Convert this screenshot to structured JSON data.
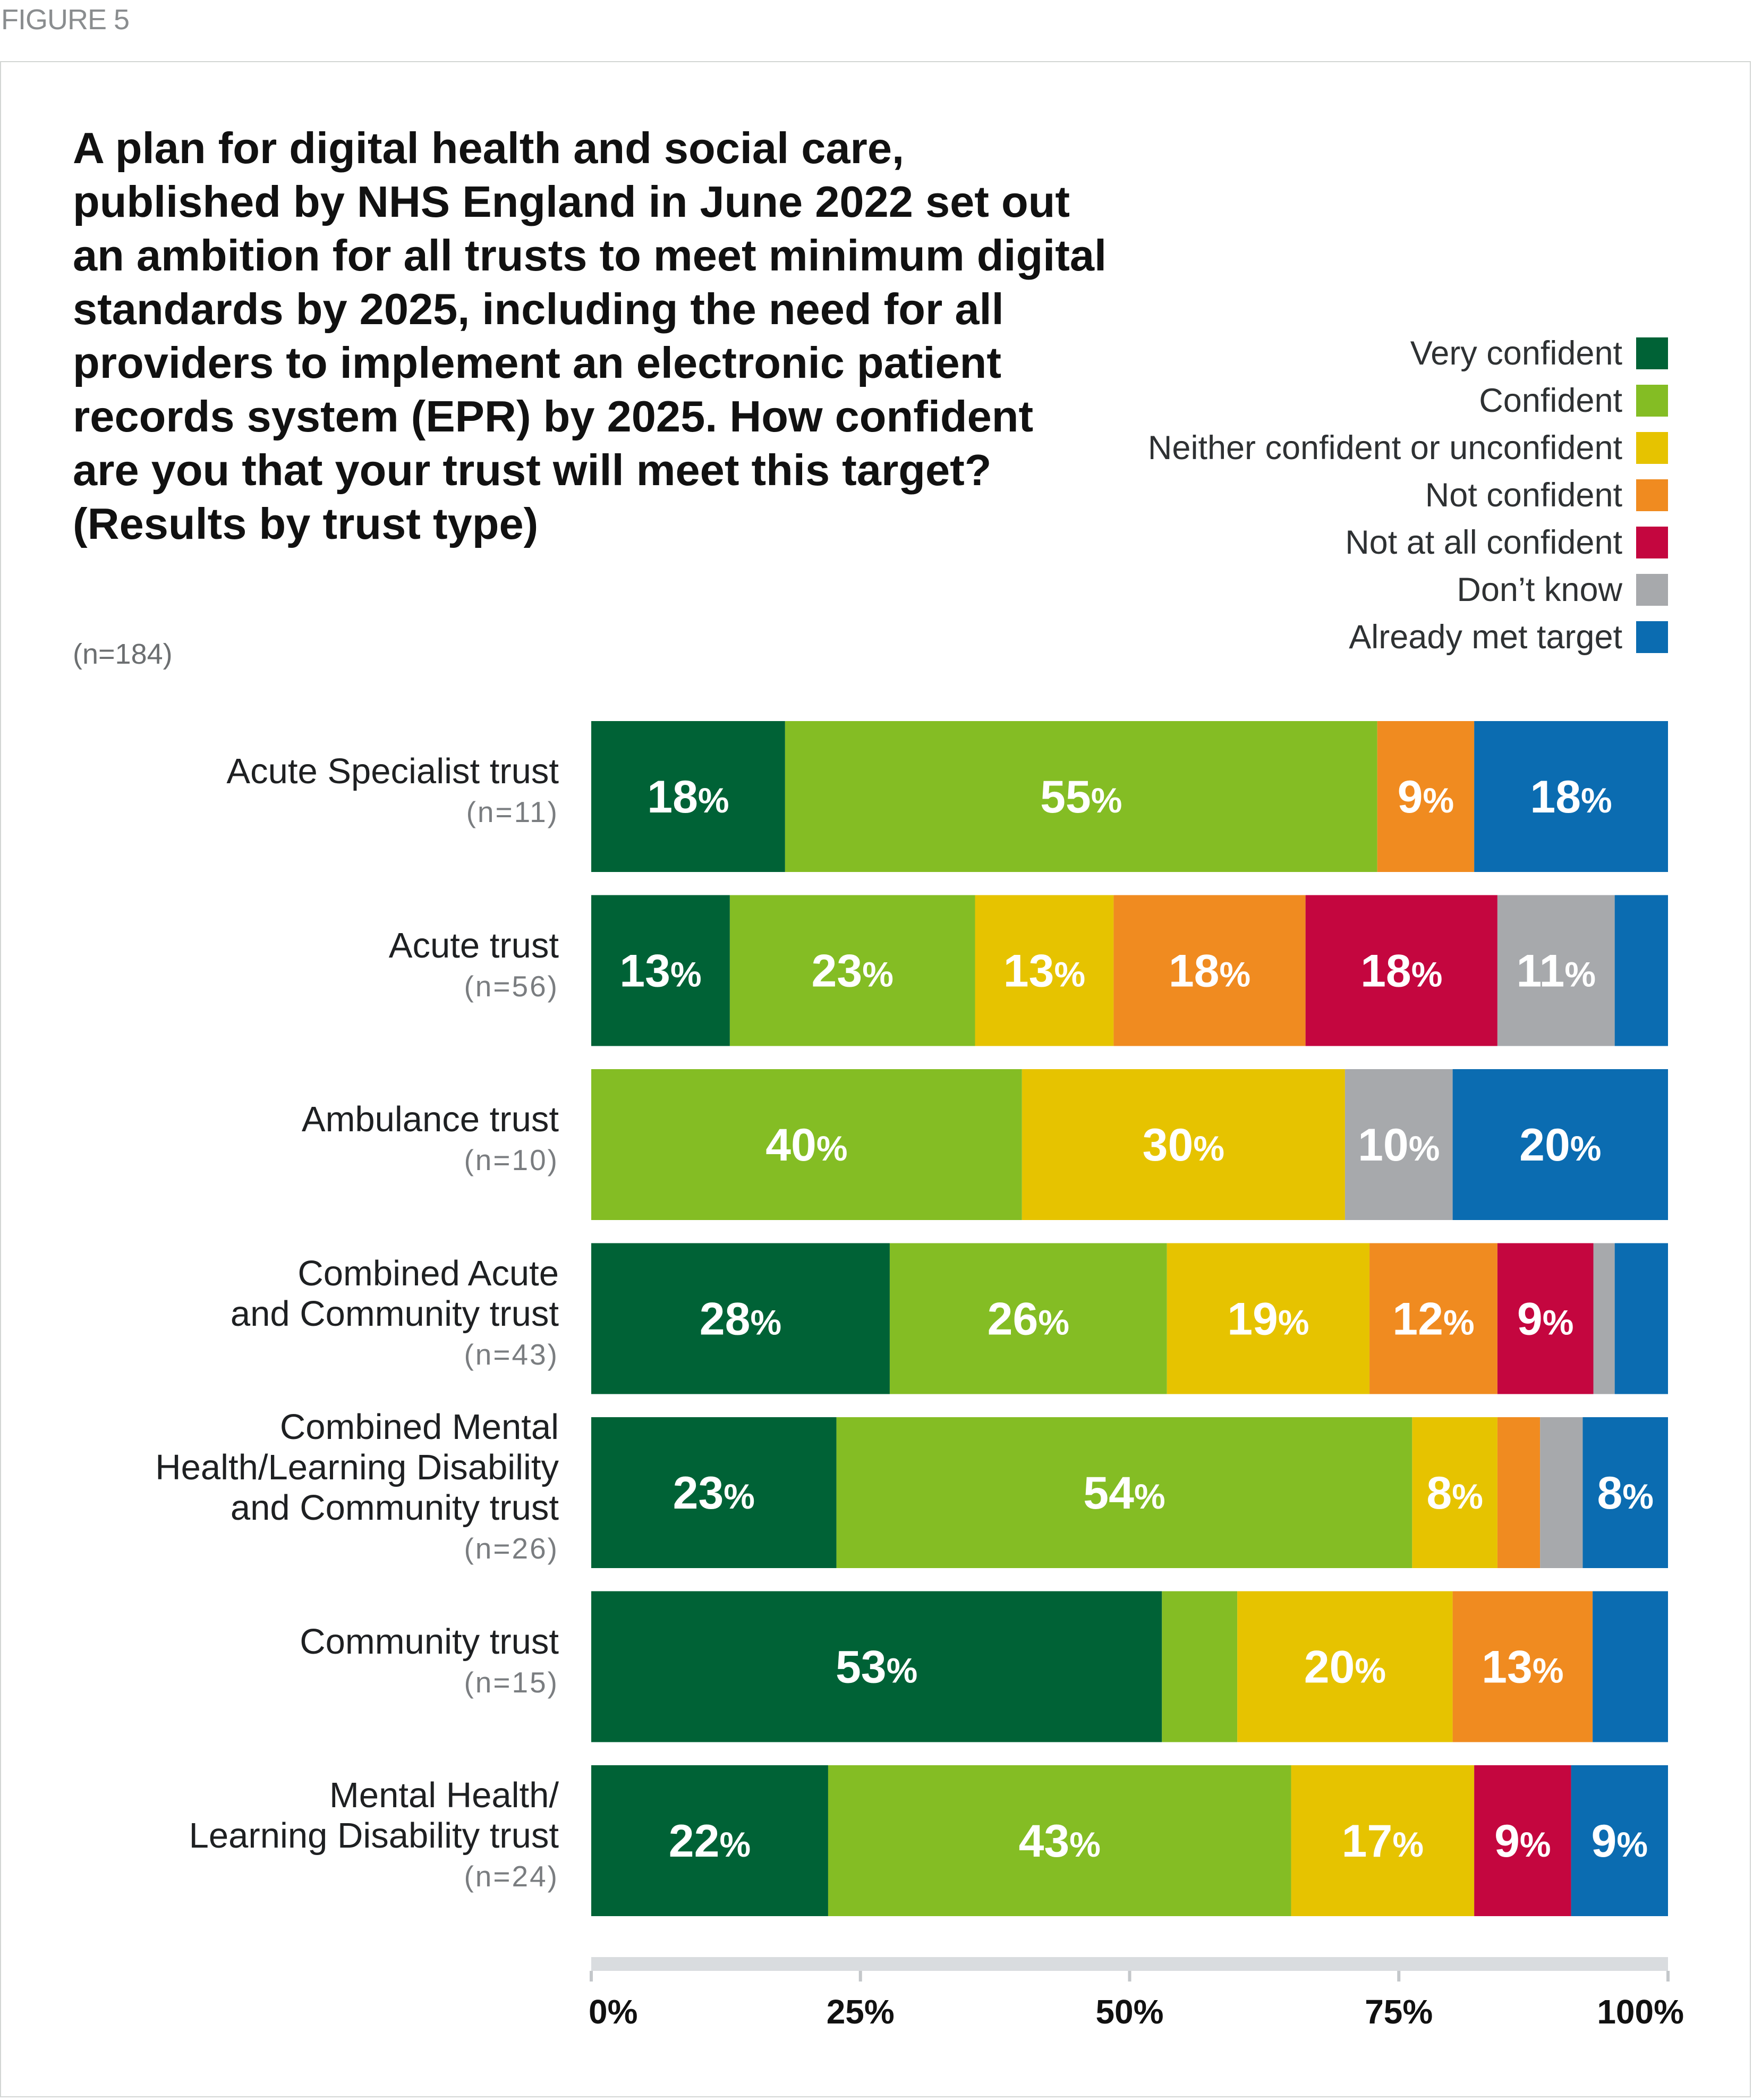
{
  "figure_label": "FIGURE 5",
  "title": "A plan for digital health and social care, published by NHS England in June 2022 set out an ambition for all trusts to meet minimum digital standards by 2025, including the need for all providers to implement an electronic patient records system (EPR) by 2025. How confident are you that your trust will meet this target? (Results by trust type)",
  "subtitle": "(n=184)",
  "chart_data": {
    "type": "bar",
    "orientation": "horizontal",
    "stacked": true,
    "title": "A plan for digital health and social care, published by NHS England in June 2022 set out an ambition for all trusts to meet minimum digital standards by 2025, including the need for all providers to implement an electronic patient records system (EPR) by 2025. How confident are you that your trust will meet this target? (Results by trust type)",
    "xlim": [
      0,
      100
    ],
    "x_ticks": [
      "0%",
      "25%",
      "50%",
      "75%",
      "100%"
    ],
    "legend_position": "top-right",
    "categories": [
      "Acute Specialist trust",
      "Acute trust",
      "Ambulance trust",
      "Combined Acute\nand Community trust",
      "Combined Mental\nHealth/Learning Disability\nand Community trust",
      "Community trust",
      "Mental Health/\nLearning Disability trust"
    ],
    "category_n": [
      "(n=11)",
      "(n=56)",
      "(n=10)",
      "(n=43)",
      "(n=26)",
      "(n=15)",
      "(n=24)"
    ],
    "series": [
      {
        "name": "Very confident",
        "color": "#006236",
        "values": [
          18,
          13,
          0,
          28,
          23,
          53,
          22
        ]
      },
      {
        "name": "Confident",
        "color": "#84bd24",
        "values": [
          55,
          23,
          40,
          26,
          54,
          7,
          43
        ]
      },
      {
        "name": "Neither confident or unconfident",
        "color": "#e6c300",
        "values": [
          0,
          13,
          30,
          19,
          8,
          20,
          17
        ]
      },
      {
        "name": "Not confident",
        "color": "#f08b20",
        "values": [
          9,
          18,
          0,
          12,
          4,
          13,
          0
        ]
      },
      {
        "name": "Not at all confident",
        "color": "#c4063f",
        "values": [
          0,
          18,
          0,
          9,
          0,
          0,
          9
        ]
      },
      {
        "name": "Don’t know",
        "color": "#a7a9ac",
        "values": [
          0,
          11,
          10,
          2,
          4,
          0,
          0
        ]
      },
      {
        "name": "Already met target",
        "color": "#0b6cb1",
        "values": [
          18,
          5,
          20,
          5,
          8,
          7,
          9
        ]
      }
    ],
    "data_labels": [
      [
        "18",
        "55",
        "",
        "9",
        "",
        "",
        "18"
      ],
      [
        "13",
        "23",
        "13",
        "18",
        "18",
        "11",
        ""
      ],
      [
        "",
        "40",
        "30",
        "",
        "",
        "10",
        "20"
      ],
      [
        "28",
        "26",
        "19",
        "12",
        "9",
        "",
        ""
      ],
      [
        "23",
        "54",
        "8",
        "",
        "",
        "",
        "8"
      ],
      [
        "53",
        "",
        "20",
        "13",
        "",
        "",
        ""
      ],
      [
        "22",
        "43",
        "17",
        "",
        "9",
        "",
        "9"
      ]
    ]
  }
}
